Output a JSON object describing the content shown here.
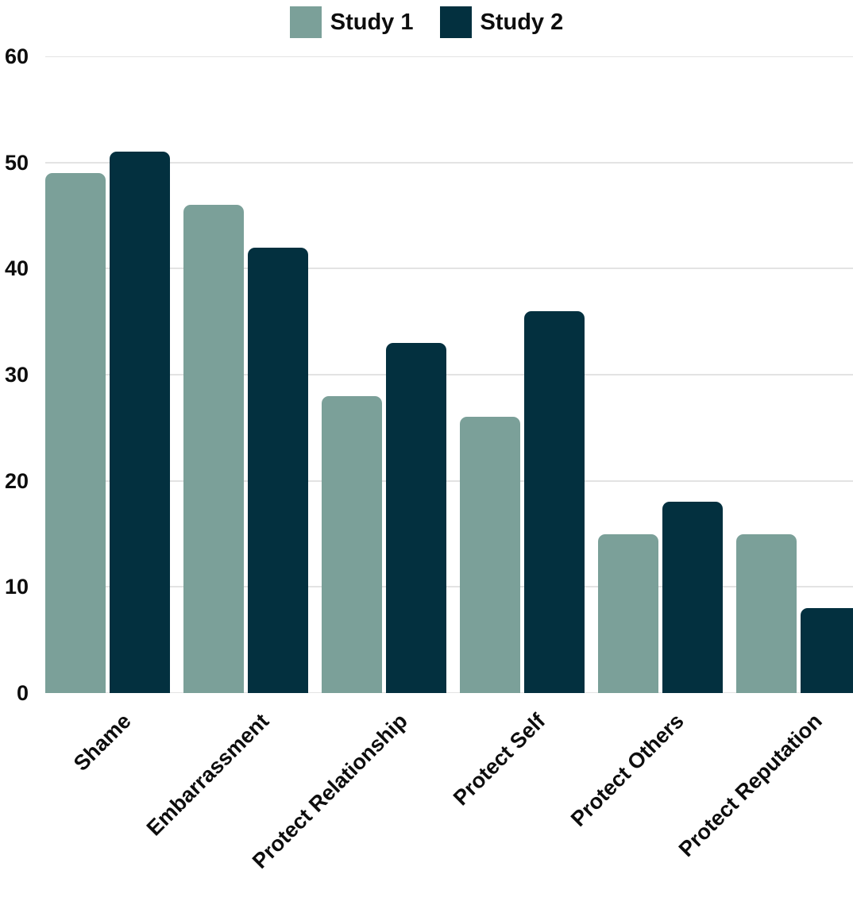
{
  "chart_data": {
    "type": "bar",
    "title": "",
    "xlabel": "",
    "ylabel": "",
    "categories": [
      "Shame",
      "Embarrassment",
      "Protect Relationship",
      "Protect Self",
      "Protect Others",
      "Protect Reputation"
    ],
    "series": [
      {
        "name": "Study 1",
        "color": "#7ba099",
        "values": [
          49,
          46,
          28,
          26,
          15,
          15
        ]
      },
      {
        "name": "Study 2",
        "color": "#03303f",
        "values": [
          51,
          42,
          33,
          36,
          18,
          8
        ]
      }
    ],
    "ylim": [
      0,
      60
    ],
    "yticks": [
      0,
      10,
      20,
      30,
      40,
      50,
      60
    ],
    "grid": true,
    "legend_position": "top-center"
  },
  "colors": {
    "background": "#ffffff",
    "gridline": "#e3e3e3",
    "text": "#0d0d0d"
  }
}
